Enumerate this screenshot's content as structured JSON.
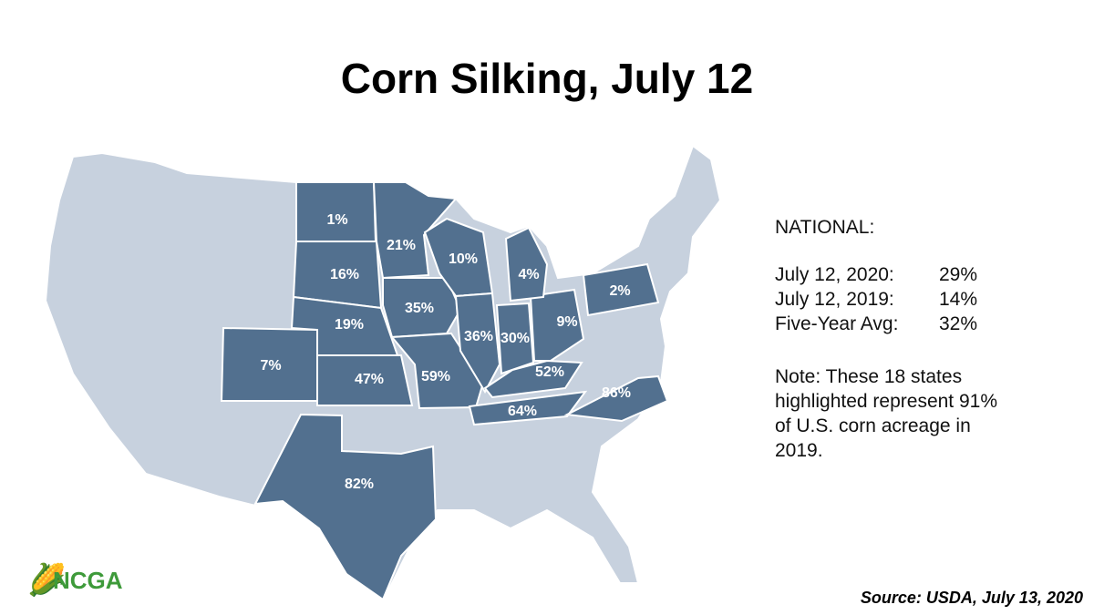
{
  "header": {
    "title": "Corn Silking, July 12"
  },
  "map": {
    "state_labels": [
      "1%",
      "16%",
      "19%",
      "47%",
      "7%",
      "82%",
      "21%",
      "35%",
      "59%",
      "10%",
      "36%",
      "30%",
      "9%",
      "4%",
      "52%",
      "64%",
      "86%",
      "2%"
    ]
  },
  "national": {
    "heading": "NATIONAL:",
    "rows": [
      [
        "July 12, 2020:",
        "29%"
      ],
      [
        "July 12, 2019:",
        "14%"
      ],
      [
        "Five-Year Avg:",
        "32%"
      ]
    ],
    "note": [
      "Note: These 18 states",
      "highlighted represent 91%",
      "of U.S. corn acreage in",
      "2019."
    ]
  },
  "logo": "NCGA",
  "source": "Source: USDA, July 13, 2020"
}
